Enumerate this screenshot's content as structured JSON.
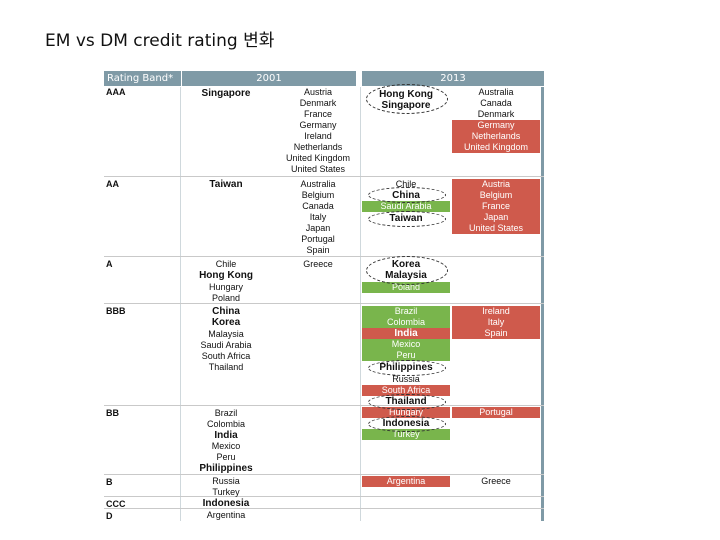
{
  "title": "EM vs DM credit rating 변화",
  "headers": {
    "band": "Rating Band*",
    "y2001": "2001",
    "y2013": "2013"
  },
  "bands": [
    "AAA",
    "AA",
    "A",
    "BBB",
    "BB",
    "B",
    "CCC",
    "D"
  ],
  "em2001": {
    "AAA": [
      "Singapore"
    ],
    "AA": [
      "Taiwan"
    ],
    "A": [
      "Chile",
      "Hong Kong",
      "Hungary",
      "Poland"
    ],
    "BBB": [
      "China",
      "Korea",
      "Malaysia",
      "Saudi Arabia",
      "South Africa",
      "Thailand"
    ],
    "BB": [
      "Brazil",
      "Colombia",
      "India",
      "Mexico",
      "Peru",
      "Philippines"
    ],
    "B": [
      "Russia",
      "Turkey"
    ],
    "CCC": [
      "Indonesia"
    ],
    "D": [
      "Argentina"
    ]
  },
  "dm2001": {
    "AAA": [
      "Austria",
      "Denmark",
      "France",
      "Germany",
      "Ireland",
      "Netherlands",
      "United Kingdom",
      "United States"
    ],
    "AA": [
      "Australia",
      "Belgium",
      "Canada",
      "Italy",
      "Japan",
      "Portugal",
      "Spain"
    ],
    "A": [
      "Greece"
    ]
  },
  "em2013": {
    "AAA": [
      "Hong Kong",
      "Singapore"
    ],
    "AA": [
      "Chile",
      "China",
      "Saudi Arabia",
      "Taiwan"
    ],
    "A": [
      "Korea",
      "Malaysia",
      "Poland"
    ],
    "BBB": [
      "Brazil",
      "Colombia",
      "India",
      "Mexico",
      "Peru",
      "Philippines",
      "Russia",
      "South Africa",
      "Thailand"
    ],
    "BB": [
      "Hungary",
      "Indonesia",
      "Turkey"
    ],
    "B": [
      "Argentina"
    ]
  },
  "dm2013": {
    "AAA": [
      "Australia",
      "Canada",
      "Denmark",
      "Germany",
      "Netherlands",
      "United Kingdom"
    ],
    "AA": [
      "Austria",
      "Belgium",
      "France",
      "Japan",
      "United States"
    ],
    "BBB": [
      "Ireland",
      "Italy",
      "Spain"
    ],
    "BB": [
      "Portugal"
    ],
    "B": [
      "Greece"
    ]
  },
  "colors": {
    "downgrade": "#cf5a4c",
    "upgrade": "#79b54c",
    "header": "#7f9aa6"
  }
}
